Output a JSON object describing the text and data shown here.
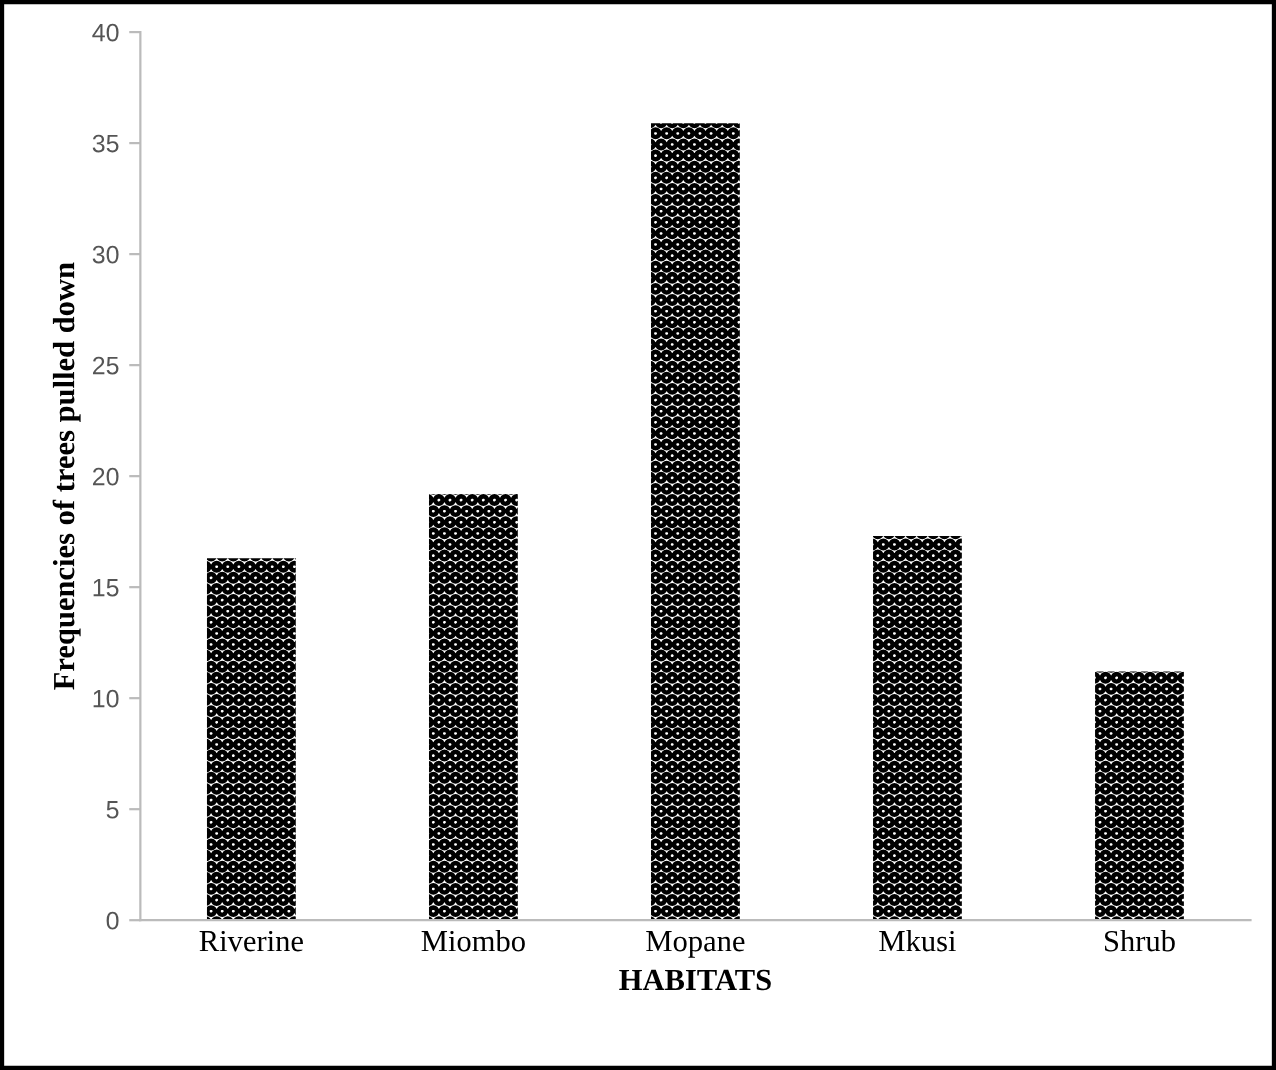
{
  "chart_data": {
    "type": "bar",
    "xlabel": "HABITATS",
    "ylabel": "Frequencies of trees pulled down",
    "categories": [
      "Riverine",
      "Miombo",
      "Mopane",
      "Mkusi",
      "Shrub"
    ],
    "values": [
      16.3,
      19.2,
      35.9,
      17.3,
      11.2
    ],
    "color": "#000000",
    "ylim": [
      0,
      40
    ],
    "yticks": [
      0,
      5,
      10,
      15,
      20,
      25,
      30,
      35,
      40
    ],
    "grid": false
  }
}
